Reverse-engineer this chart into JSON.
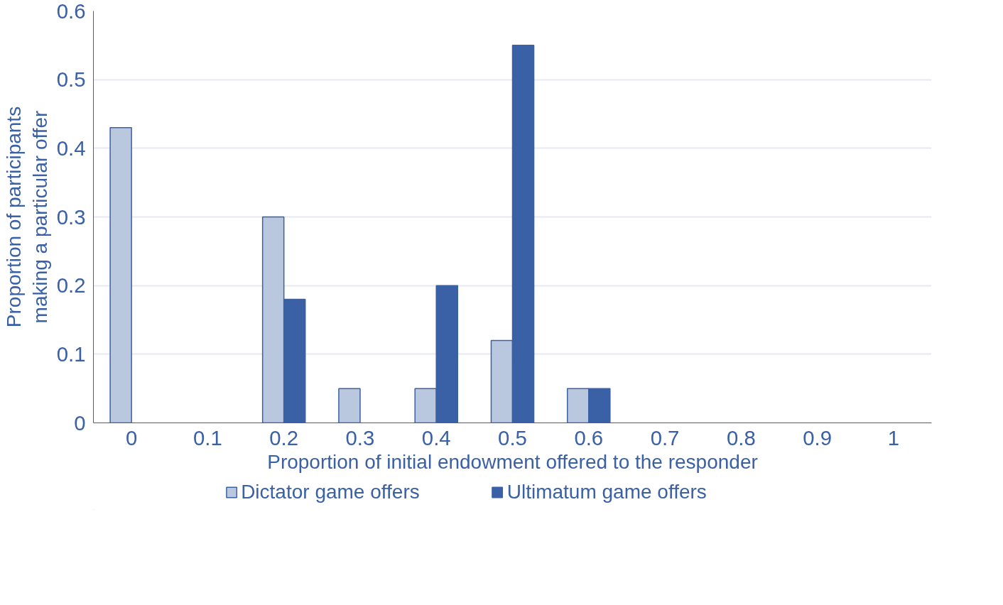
{
  "chart_data": {
    "type": "bar",
    "xlabel": "Proportion of initial endowment offered to the responder",
    "ylabel": "Proportion of participants\nmaking a particular offer",
    "categories": [
      "0",
      "0.1",
      "0.2",
      "0.3",
      "0.4",
      "0.5",
      "0.6",
      "0.7",
      "0.8",
      "0.9",
      "1"
    ],
    "series": [
      {
        "name": "Dictator game offers",
        "color": "#b9c7df",
        "values": [
          0.43,
          0,
          0.3,
          0.05,
          0.05,
          0.12,
          0.05,
          0,
          0,
          0,
          0
        ]
      },
      {
        "name": "Ultimatum game offers",
        "color": "#3a60a6",
        "values": [
          0,
          0,
          0.18,
          0,
          0.2,
          0.55,
          0.05,
          0,
          0,
          0,
          0
        ]
      }
    ],
    "ylim": [
      0,
      0.6
    ],
    "yticks": [
      0,
      0.1,
      0.2,
      0.3,
      0.4,
      0.5,
      0.6
    ],
    "grid": "y",
    "legend": "bottom"
  }
}
